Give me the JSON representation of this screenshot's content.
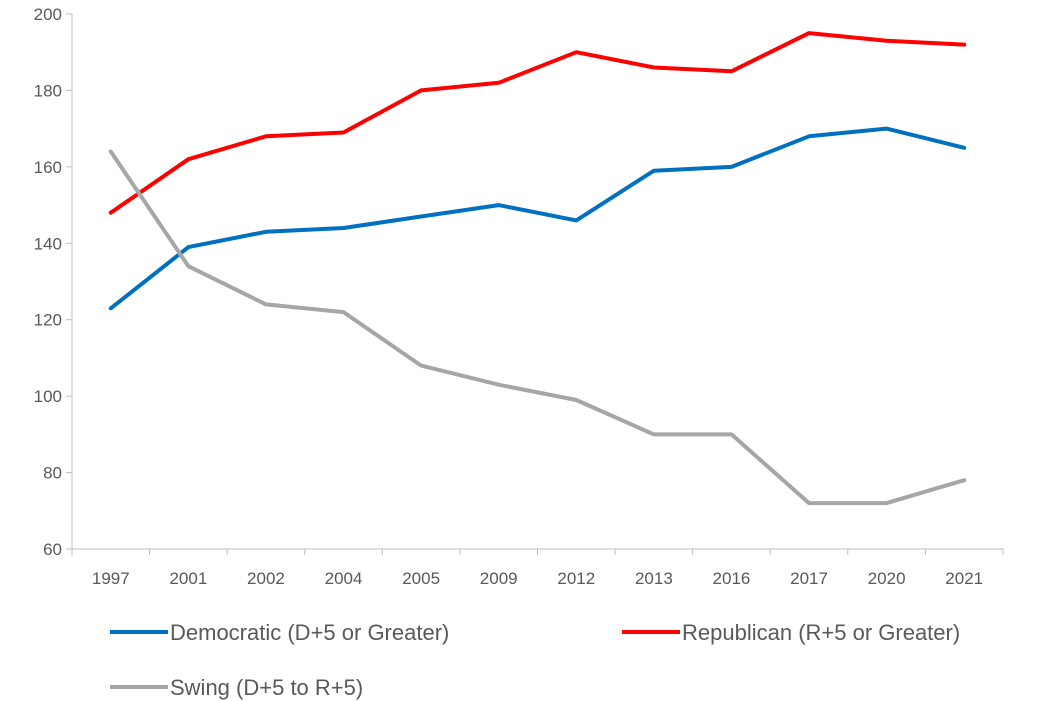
{
  "chart_data": {
    "type": "line",
    "title": "",
    "xlabel": "",
    "ylabel": "",
    "categories": [
      "1997",
      "2001",
      "2002",
      "2004",
      "2005",
      "2009",
      "2012",
      "2013",
      "2016",
      "2017",
      "2020",
      "2021"
    ],
    "ylim": [
      60,
      200
    ],
    "yticks": [
      "60",
      "80",
      "100",
      "120",
      "140",
      "160",
      "180",
      "200"
    ],
    "grid": false,
    "legend_position": "bottom",
    "series": [
      {
        "name": "Democratic (D+5 or Greater)",
        "color": "#0070c0",
        "values": [
          123,
          139,
          143,
          144,
          147,
          150,
          146,
          159,
          160,
          168,
          170,
          165
        ]
      },
      {
        "name": "Republican (R+5 or Greater)",
        "color": "#ff0000",
        "values": [
          148,
          162,
          168,
          169,
          180,
          182,
          190,
          186,
          185,
          195,
          193,
          192
        ]
      },
      {
        "name": "Swing (D+5 to R+5)",
        "color": "#a6a6a6",
        "values": [
          164,
          134,
          124,
          122,
          108,
          103,
          99,
          90,
          90,
          72,
          72,
          78
        ]
      }
    ]
  }
}
